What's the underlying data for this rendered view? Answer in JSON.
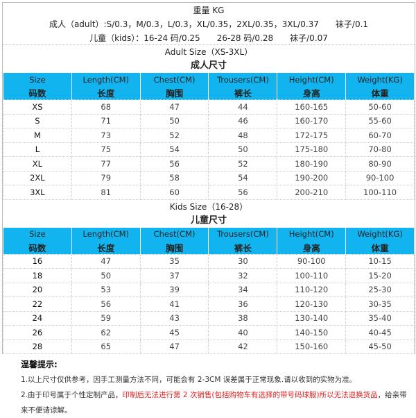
{
  "weight": {
    "title": "重量 KG",
    "adult_line": "成人（adult）:S/0.3，M/0.3，L/0.3，XL/0.35，2XL/0.35，3XL/0.37　　袜子/0.1",
    "kids_line": "儿童（kids）：16-24 码/0.25　　26-28 码/0.28　　袜子/0.07"
  },
  "adult": {
    "title_en": "Adult Size（XS-3XL）",
    "title_zh": "成人尺寸",
    "headers_en": [
      "Size",
      "Length(CM)",
      "Chest(CM)",
      "Trousers(CM)",
      "Height(CM)",
      "Weight(KG)"
    ],
    "headers_zh": [
      "码数",
      "长度",
      "胸围",
      "裤长",
      "身高",
      "体重"
    ],
    "rows": [
      [
        "XS",
        "68",
        "47",
        "44",
        "160-165",
        "50-60"
      ],
      [
        "S",
        "71",
        "50",
        "46",
        "160-170",
        "55-60"
      ],
      [
        "M",
        "73",
        "52",
        "48",
        "172-175",
        "60-70"
      ],
      [
        "L",
        "75",
        "54",
        "50",
        "175-180",
        "70-80"
      ],
      [
        "XL",
        "77",
        "56",
        "52",
        "180-190",
        "80-90"
      ],
      [
        "2XL",
        "79",
        "58",
        "54",
        "190-200",
        "90-100"
      ],
      [
        "3XL",
        "81",
        "60",
        "56",
        "200-210",
        "100-110"
      ]
    ]
  },
  "kids": {
    "title_en": "Kids Size（16-28）",
    "title_zh": "儿童尺寸",
    "headers_en": [
      "Size",
      "Length(CM)",
      "Chest(CM)",
      "Trousers(CM)",
      "Height(CM)",
      "Weight(KG)"
    ],
    "headers_zh": [
      "码数",
      "长度",
      "胸围",
      "裤长",
      "身高",
      "体重"
    ],
    "rows": [
      [
        "16",
        "47",
        "35",
        "30",
        "90-100",
        "10-15"
      ],
      [
        "18",
        "50",
        "37",
        "32",
        "100-110",
        "15-20"
      ],
      [
        "20",
        "53",
        "39",
        "34",
        "110-120",
        "25-30"
      ],
      [
        "22",
        "56",
        "41",
        "36",
        "120-130",
        "30-35"
      ],
      [
        "24",
        "59",
        "43",
        "38",
        "130-140",
        "35-40"
      ],
      [
        "26",
        "62",
        "45",
        "40",
        "140-150",
        "40-45"
      ],
      [
        "28",
        "65",
        "47",
        "42",
        "150-160",
        "45-50"
      ]
    ]
  },
  "notes": {
    "title": "温馨提示:",
    "note1": "1.以上尺寸仅供参考，因手工测量方法不同，可能会有 2-3CM 误差属于正常现象.请以收到的实物为准。",
    "note2_a": "2.由于印号属于个性定制产品，",
    "note2_red": "印制后无法进行第 2 次销售(包括购物车有选择的带号码球服)所以无法退换货品",
    "note2_b": "，给亲带来不便请谅解。"
  },
  "colors": {
    "header_bg": "#12b4ef",
    "warning": "#e02020"
  }
}
